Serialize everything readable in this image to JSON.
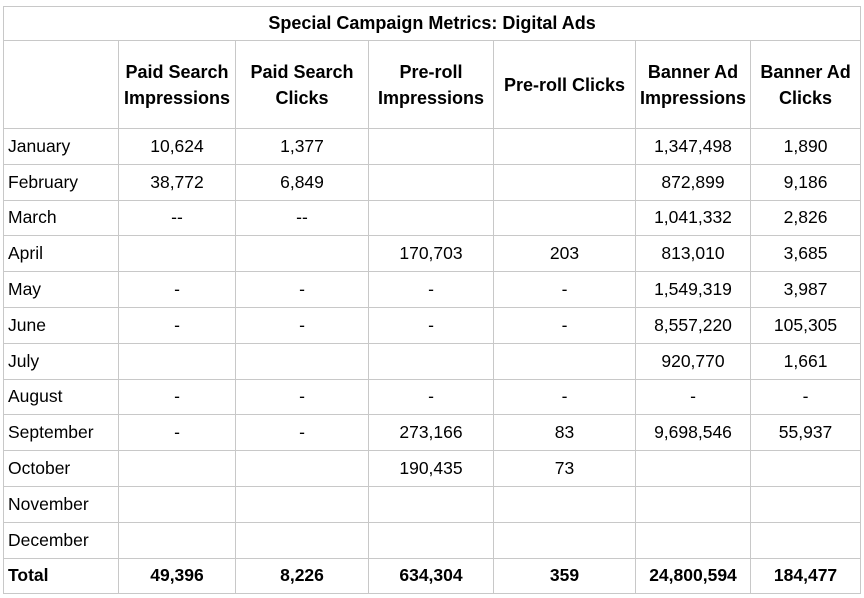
{
  "title": "Special Campaign Metrics: Digital Ads",
  "columns": [
    "Paid Search Impressions",
    "Paid Search Clicks",
    "Pre-roll Impressions",
    "Pre-roll Clicks",
    "Banner Ad Impressions",
    "Banner Ad Clicks"
  ],
  "rows": [
    {
      "month": "January",
      "cells": [
        "10,624",
        "1,377",
        "",
        "",
        "1,347,498",
        "1,890"
      ]
    },
    {
      "month": "February",
      "cells": [
        "38,772",
        "6,849",
        "",
        "",
        "872,899",
        "9,186"
      ]
    },
    {
      "month": "March",
      "cells": [
        "--",
        "--",
        "",
        "",
        "1,041,332",
        "2,826"
      ]
    },
    {
      "month": "April",
      "cells": [
        "",
        "",
        "170,703",
        "203",
        "813,010",
        "3,685"
      ]
    },
    {
      "month": "May",
      "cells": [
        "-",
        "-",
        "-",
        "-",
        "1,549,319",
        "3,987"
      ]
    },
    {
      "month": "June",
      "cells": [
        "-",
        "-",
        "-",
        "-",
        "8,557,220",
        "105,305"
      ]
    },
    {
      "month": "July",
      "cells": [
        "",
        "",
        "",
        "",
        "920,770",
        "1,661"
      ]
    },
    {
      "month": "August",
      "cells": [
        "-",
        "-",
        "-",
        "-",
        "-",
        "-"
      ]
    },
    {
      "month": "September",
      "cells": [
        "-",
        "-",
        "273,166",
        "83",
        "9,698,546",
        "55,937"
      ]
    },
    {
      "month": "October",
      "cells": [
        "",
        "",
        "190,435",
        "73",
        "",
        ""
      ]
    },
    {
      "month": "November",
      "cells": [
        "",
        "",
        "",
        "",
        "",
        ""
      ]
    },
    {
      "month": "December",
      "cells": [
        "",
        "",
        "",
        "",
        "",
        ""
      ]
    }
  ],
  "total": {
    "label": "Total",
    "cells": [
      "49,396",
      "8,226",
      "634,304",
      "359",
      "24,800,594",
      "184,477"
    ]
  }
}
